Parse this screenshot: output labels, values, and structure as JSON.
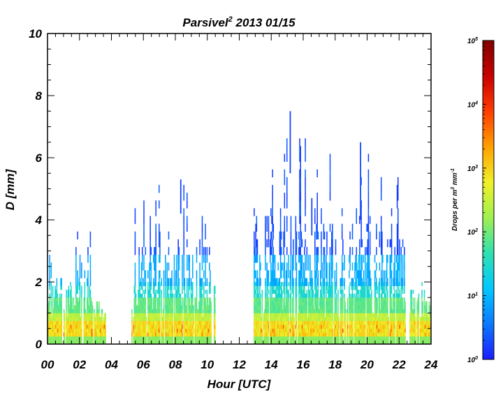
{
  "chart_data": {
    "type": "heatmap",
    "title": "Parsivel",
    "title_superscript": "2",
    "title_suffix": " 2013 01/15",
    "xlabel": "Hour [UTC]",
    "ylabel": "D [mm]",
    "xlim": [
      0,
      24
    ],
    "ylim": [
      0,
      10
    ],
    "x_ticks": [
      "00",
      "02",
      "04",
      "06",
      "08",
      "10",
      "12",
      "14",
      "16",
      "18",
      "20",
      "22",
      "24"
    ],
    "y_ticks": [
      "0",
      "2",
      "4",
      "6",
      "8",
      "10"
    ],
    "colorbar": {
      "title_main": "Drops per m",
      "title_sup1": "3",
      "title_mid": " mm",
      "title_sup2": "-1",
      "scale": "log",
      "range": [
        1,
        100000
      ],
      "ticks": [
        {
          "base": "10",
          "exp": "0"
        },
        {
          "base": "10",
          "exp": "1"
        },
        {
          "base": "10",
          "exp": "2"
        },
        {
          "base": "10",
          "exp": "3"
        },
        {
          "base": "10",
          "exp": "4"
        },
        {
          "base": "10",
          "exp": "5"
        }
      ],
      "colormap": [
        "#1c1cff",
        "#0a78ff",
        "#00c8ff",
        "#2fe0b0",
        "#a0f050",
        "#f0f028",
        "#ffa000",
        "#ff3c00",
        "#c80000",
        "#800000"
      ]
    },
    "rain_periods": [
      {
        "start": 0.0,
        "end": 0.9,
        "max_d": 3.3
      },
      {
        "start": 1.0,
        "end": 2.7,
        "max_d": 3.8
      },
      {
        "start": 2.7,
        "end": 3.6,
        "max_d": 2.0
      },
      {
        "start": 5.2,
        "end": 10.5,
        "max_d": 5.3
      },
      {
        "start": 12.9,
        "end": 17.0,
        "max_d": 7.5
      },
      {
        "start": 17.0,
        "end": 22.4,
        "max_d": 6.5
      },
      {
        "start": 22.6,
        "end": 23.95,
        "max_d": 2.6
      }
    ],
    "isolated_drops": [
      {
        "x": 15.15,
        "d_min": 5.5,
        "d_max": 7.5
      },
      {
        "x": 19.55,
        "d_min": 4.0,
        "d_max": 6.5
      },
      {
        "x": 8.3,
        "d_min": 4.2,
        "d_max": 5.3
      },
      {
        "x": 16.5,
        "d_min": 3.5,
        "d_max": 4.7
      }
    ]
  }
}
